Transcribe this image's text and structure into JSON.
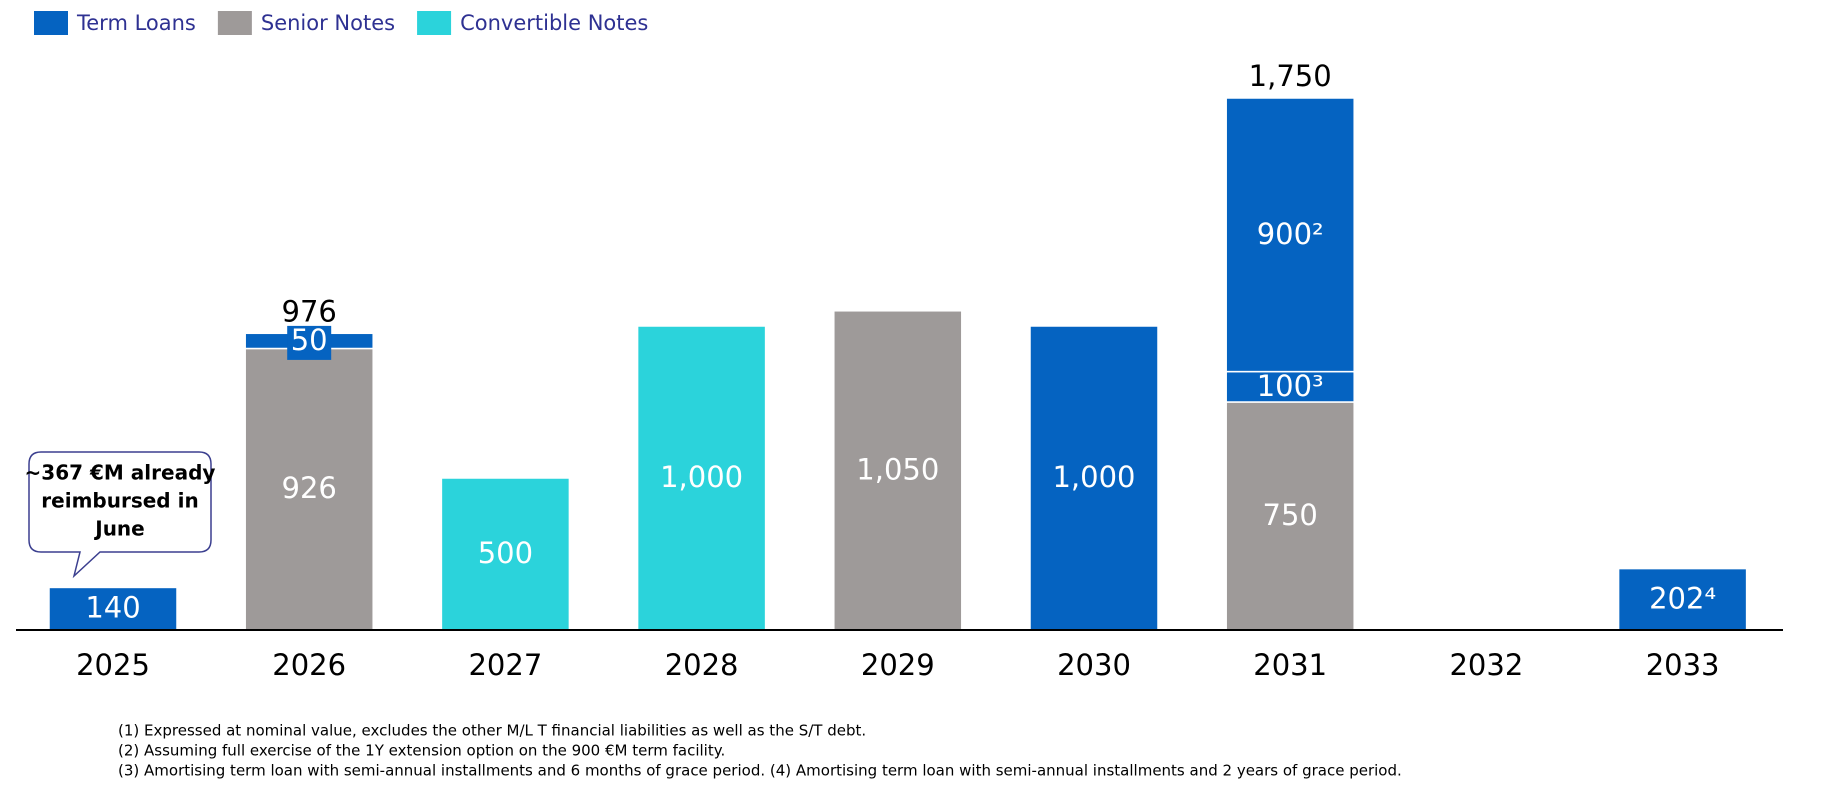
{
  "chart_data": {
    "type": "stacked_bar",
    "categories": [
      "2025",
      "2026",
      "2027",
      "2028",
      "2029",
      "2030",
      "2031",
      "2032",
      "2033"
    ],
    "series": [
      {
        "name": "Term Loans",
        "color": "#0563c1",
        "values": [
          140,
          50,
          null,
          null,
          null,
          1000,
          [
            100,
            900
          ],
          null,
          202
        ],
        "value_labels": [
          "140",
          "50",
          null,
          null,
          null,
          "1,000",
          [
            "100³",
            "900²"
          ],
          null,
          "202⁴"
        ]
      },
      {
        "name": "Senior Notes",
        "color": "#9e9a99",
        "values": [
          null,
          926,
          null,
          null,
          1050,
          null,
          750,
          null,
          null
        ],
        "value_labels": [
          null,
          "926",
          null,
          null,
          "1,050",
          null,
          "750",
          null,
          null
        ]
      },
      {
        "name": "Convertible Notes",
        "color": "#2bd3db",
        "values": [
          null,
          null,
          500,
          1000,
          null,
          null,
          null,
          null,
          null
        ],
        "value_labels": [
          null,
          null,
          "500",
          "1,000",
          null,
          null,
          null,
          null,
          null
        ]
      }
    ],
    "totals": [
      null,
      976,
      null,
      null,
      null,
      null,
      1750,
      null,
      null
    ],
    "total_labels": [
      null,
      "976",
      null,
      null,
      null,
      null,
      "1,750",
      null,
      null
    ],
    "annotation": [
      "~367 €M already",
      "reimbursed in",
      "June"
    ],
    "footnotes": [
      "(1) Expressed at nominal value, excludes the other M/L T financial liabilities as well as the S/T debt.",
      "(2) Assuming full exercise of the 1Y extension option on the 900 €M term facility.",
      "(3) Amortising term loan with semi-annual installments and 6 months of grace period.  (4) Amortising term loan with semi-annual installments and 2 years of grace period."
    ]
  }
}
